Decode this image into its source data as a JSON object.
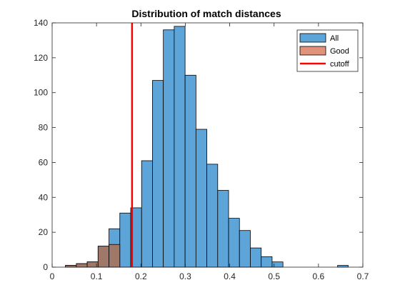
{
  "chart_data": {
    "type": "bar",
    "title": "Distribution of match distances",
    "xlabel": "",
    "ylabel": "",
    "xlim": [
      0,
      0.7
    ],
    "ylim": [
      0,
      140
    ],
    "x_ticks": [
      0,
      0.1,
      0.2,
      0.3,
      0.4,
      0.5,
      0.6,
      0.7
    ],
    "x_tick_labels": [
      "0",
      "0.1",
      "0.2",
      "0.3",
      "0.4",
      "0.5",
      "0.6",
      "0.7"
    ],
    "y_ticks": [
      0,
      20,
      40,
      60,
      80,
      100,
      120,
      140
    ],
    "y_tick_labels": [
      "0",
      "20",
      "40",
      "60",
      "80",
      "100",
      "120",
      "140"
    ],
    "grid": false,
    "legend_position": "top-right",
    "bin_edges": [
      0.03,
      0.0545,
      0.079,
      0.1035,
      0.128,
      0.1525,
      0.177,
      0.2015,
      0.226,
      0.2505,
      0.275,
      0.2995,
      0.324,
      0.3485,
      0.373,
      0.3975,
      0.422,
      0.4465,
      0.471,
      0.4955,
      0.52,
      0.5445,
      0.569,
      0.5935,
      0.618,
      0.6425,
      0.667
    ],
    "series": [
      {
        "name": "All",
        "kind": "histogram",
        "color": "#5DA5D9",
        "edge_color": "#000000",
        "bins": [
          [
            0.03,
            0.0545,
            1
          ],
          [
            0.0545,
            0.079,
            2
          ],
          [
            0.079,
            0.1035,
            3
          ],
          [
            0.1035,
            0.128,
            12
          ],
          [
            0.128,
            0.1525,
            22
          ],
          [
            0.1525,
            0.177,
            31
          ],
          [
            0.177,
            0.2015,
            34
          ],
          [
            0.2015,
            0.226,
            61
          ],
          [
            0.226,
            0.2505,
            107
          ],
          [
            0.2505,
            0.275,
            136
          ],
          [
            0.275,
            0.2995,
            138
          ],
          [
            0.2995,
            0.324,
            110
          ],
          [
            0.324,
            0.3485,
            79
          ],
          [
            0.3485,
            0.373,
            59
          ],
          [
            0.373,
            0.3975,
            44
          ],
          [
            0.3975,
            0.422,
            28
          ],
          [
            0.422,
            0.4465,
            21
          ],
          [
            0.4465,
            0.471,
            11
          ],
          [
            0.471,
            0.4955,
            6
          ],
          [
            0.4955,
            0.52,
            3
          ],
          [
            0.643,
            0.667,
            1
          ]
        ]
      },
      {
        "name": "Good",
        "kind": "histogram",
        "color": "#A0786A",
        "legend_color": "#E0937A",
        "edge_color": "#000000",
        "bins": [
          [
            0.03,
            0.0545,
            1
          ],
          [
            0.0545,
            0.079,
            2
          ],
          [
            0.079,
            0.1035,
            3
          ],
          [
            0.1035,
            0.128,
            12
          ],
          [
            0.128,
            0.1525,
            13
          ]
        ]
      },
      {
        "name": "cutoff",
        "kind": "vline",
        "color": "#FF0000",
        "x": 0.18
      }
    ]
  }
}
